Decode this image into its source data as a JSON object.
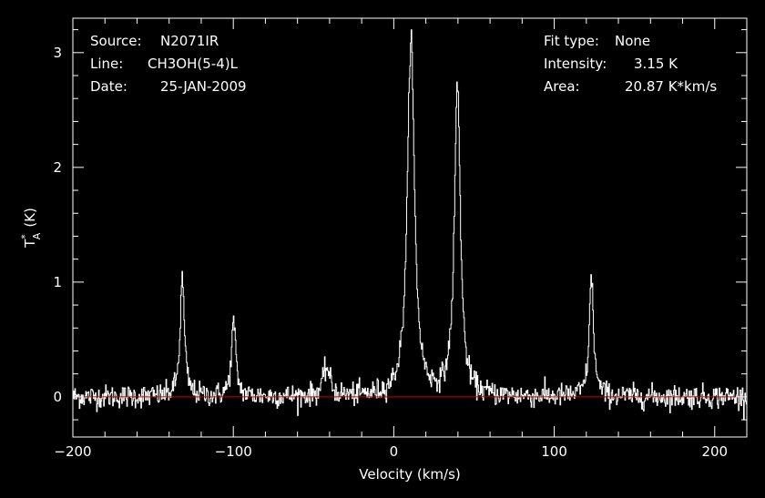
{
  "header": {
    "left": [
      {
        "key": "Source:",
        "value": "N2071IR"
      },
      {
        "key": "Line:",
        "value": "CH3OH(5-4)L"
      },
      {
        "key": "Date:",
        "value": "25-JAN-2009"
      }
    ],
    "right": [
      {
        "key": "Fit type:",
        "value": "None"
      },
      {
        "key": "Intensity:",
        "value": "3.15 K"
      },
      {
        "key": "Area:",
        "value": "20.87 K*km/s"
      }
    ]
  },
  "chart_data": {
    "type": "line",
    "xlabel": "Velocity (km/s)",
    "ylabel_main": "T",
    "ylabel_sup": "*",
    "ylabel_sub": "A",
    "ylabel_unit": "(K)",
    "xlim": [
      -200,
      220
    ],
    "ylim": [
      -0.35,
      3.3
    ],
    "x_ticks": [
      -200,
      -100,
      0,
      100,
      200
    ],
    "x_tick_labels": [
      "−200",
      "−100",
      "0",
      "100",
      "200"
    ],
    "y_ticks": [
      0,
      1,
      2,
      3
    ],
    "y_tick_labels": [
      "0",
      "1",
      "2",
      "3"
    ],
    "baseline": 0,
    "baseline_color": "#cc0000",
    "line_color": "#ffffff",
    "noise_rms": 0.05,
    "channel_width": 0.4,
    "series": [
      {
        "peaks": [
          {
            "x": -132,
            "y": 1.03,
            "width": 1.6
          },
          {
            "x": -100,
            "y": 0.65,
            "width": 1.6
          },
          {
            "x": -42,
            "y": 0.25,
            "width": 2.5
          },
          {
            "x": 10.5,
            "y": 3.15,
            "width": 2.6
          },
          {
            "x": 39.5,
            "y": 2.72,
            "width": 2.2
          },
          {
            "x": 123,
            "y": 1.04,
            "width": 1.6
          }
        ]
      }
    ]
  }
}
